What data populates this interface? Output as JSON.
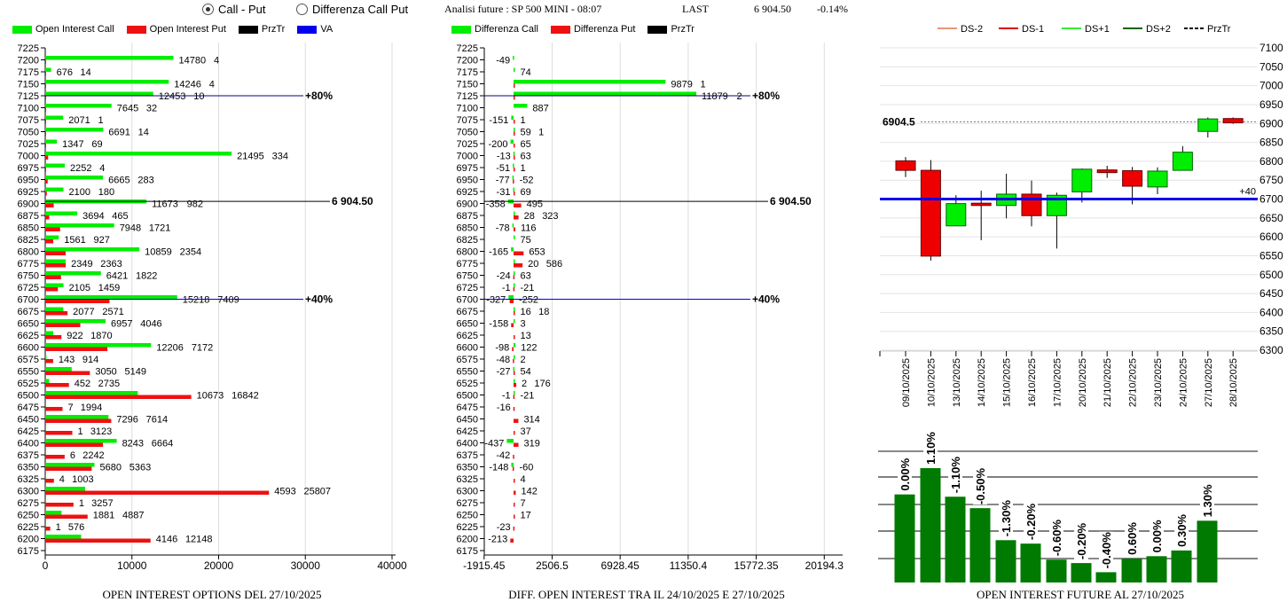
{
  "header": {
    "radio_call_put": "Call - Put",
    "radio_diff": "Differenza Call Put",
    "selected": "Call - Put",
    "analysis_title": "Analisi future : SP 500 MINI - 08:07",
    "last_label": "LAST",
    "last_value": "6 904.50",
    "change": "-0.14%"
  },
  "colors": {
    "call": "#00ee00",
    "put": "#ee1111",
    "przTr": "#000000",
    "va": "#0000ee",
    "ds_minus2": "#e8967a",
    "ds_minus1": "#dd0000",
    "ds_plus1": "#33ee33",
    "ds_plus2": "#006600",
    "oi_bar": "#007a00"
  },
  "chart_data": [
    {
      "type": "bar",
      "orientation": "horizontal",
      "title": "OPEN INTEREST OPTIONS DEL 27/10/2025",
      "legend": [
        "Open Interest Call",
        "Open Interest Put",
        "PrzTr",
        "VA"
      ],
      "legend_placement": "top",
      "xlim": [
        0,
        40000
      ],
      "xticks": [
        "0",
        "10000",
        "20000",
        "30000",
        "40000"
      ],
      "grid": true,
      "strikes": [
        7200,
        7175,
        7150,
        7125,
        7100,
        7075,
        7050,
        7025,
        7000,
        6975,
        6950,
        6925,
        6900,
        6875,
        6850,
        6825,
        6800,
        6775,
        6750,
        6725,
        6700,
        6675,
        6650,
        6625,
        6600,
        6575,
        6550,
        6525,
        6500,
        6475,
        6450,
        6425,
        6400,
        6375,
        6350,
        6325,
        6300,
        6275,
        6250,
        6225,
        6200
      ],
      "yticks": [
        7225,
        7200,
        7175,
        7150,
        7125,
        7100,
        7075,
        7050,
        7025,
        7000,
        6975,
        6950,
        6925,
        6900,
        6875,
        6850,
        6825,
        6800,
        6775,
        6750,
        6725,
        6700,
        6675,
        6650,
        6625,
        6600,
        6575,
        6550,
        6525,
        6500,
        6475,
        6450,
        6425,
        6400,
        6375,
        6350,
        6325,
        6300,
        6275,
        6250,
        6225,
        6200,
        6175
      ],
      "series": [
        {
          "name": "Open Interest Call",
          "values": [
            14780,
            676,
            14246,
            12453,
            7645,
            2071,
            6691,
            1347,
            21495,
            2252,
            6665,
            2100,
            11673,
            3694,
            7948,
            1561,
            10859,
            2349,
            6421,
            2105,
            15218,
            2077,
            6957,
            922,
            12206,
            143,
            3050,
            452,
            10673,
            7,
            7296,
            1,
            8243,
            6,
            5680,
            4,
            4593,
            1,
            1881,
            1,
            4146
          ]
        },
        {
          "name": "Open Interest Put",
          "values": [
            4,
            14,
            4,
            10,
            32,
            1,
            14,
            69,
            334,
            4,
            283,
            180,
            982,
            465,
            1721,
            927,
            2354,
            2363,
            1822,
            1459,
            7409,
            2571,
            4046,
            1870,
            7172,
            914,
            5149,
            2735,
            16842,
            1994,
            7614,
            3123,
            6664,
            2242,
            5363,
            1003,
            25807,
            3257,
            4887,
            576,
            12148
          ]
        }
      ],
      "lines": [
        {
          "strike": 7125,
          "label": "+80%",
          "color": "#000080"
        },
        {
          "strike": 6904.5,
          "label": "6 904.50",
          "color": "#000000"
        },
        {
          "strike": 6700,
          "label": "+40%",
          "color": "#0000ee"
        }
      ]
    },
    {
      "type": "bar",
      "orientation": "horizontal",
      "title": "DIFF. OPEN INTEREST TRA IL 24/10/2025 E 27/10/2025",
      "legend": [
        "Differenza Call",
        "Differenza Put",
        "PrzTr"
      ],
      "legend_placement": "top",
      "xlim": [
        -1915.45,
        20194.3
      ],
      "xticks": [
        "-1915.45",
        "2506.5",
        "6928.45",
        "11350.4",
        "15772.35",
        "20194.3"
      ],
      "grid": true,
      "series": [
        {
          "name": "Differenza Call",
          "values": [
            -49,
            74,
            9879,
            11879,
            887,
            -151,
            59,
            -200,
            -13,
            -51,
            -77,
            -31,
            -358,
            28,
            -78,
            75,
            -165,
            20,
            63,
            -1,
            -327,
            16,
            3,
            null,
            122,
            2,
            -27,
            2,
            -1,
            null,
            null,
            null,
            -437,
            null,
            -148,
            null,
            null,
            null,
            null,
            null,
            null
          ]
        },
        {
          "name": "Differenza Put",
          "values": [
            null,
            null,
            1,
            2,
            null,
            1,
            1,
            65,
            63,
            1,
            -52,
            69,
            495,
            323,
            116,
            null,
            653,
            586,
            -24,
            -21,
            -252,
            18,
            -158,
            13,
            -98,
            -48,
            54,
            176,
            -21,
            -16,
            314,
            37,
            319,
            -42,
            -60,
            4,
            142,
            7,
            17,
            -23,
            -213
          ]
        }
      ],
      "lines": [
        {
          "strike": 7125,
          "label": "+80%",
          "color": "#000080"
        },
        {
          "strike": 6904.5,
          "label": "6 904.50",
          "color": "#000000"
        },
        {
          "strike": 6700,
          "label": "+40%",
          "color": "#0000ee"
        }
      ]
    },
    {
      "type": "candlestick",
      "legend": [
        "DS-2",
        "DS-1",
        "DS+1",
        "DS+2",
        "PrzTr"
      ],
      "legend_placement": "top",
      "ylim": [
        6300,
        7100
      ],
      "yticks": [
        "7100",
        "7050",
        "7000",
        "6950",
        "6900",
        "6850",
        "6800",
        "6750",
        "6700",
        "6650",
        "6600",
        "6550",
        "6500",
        "6450",
        "6400",
        "6350",
        "6300"
      ],
      "grid": true,
      "price_label": "6904.5",
      "price_line": 6904.5,
      "level_line": {
        "value": 6700,
        "label": "+40"
      },
      "dates": [
        "09/10/2025",
        "10/10/2025",
        "13/10/2025",
        "14/10/2025",
        "15/10/2025",
        "16/10/2025",
        "17/10/2025",
        "20/10/2025",
        "21/10/2025",
        "22/10/2025",
        "23/10/2025",
        "24/10/2025",
        "27/10/2025",
        "28/10/2025"
      ],
      "ohlc": [
        [
          6801,
          6811,
          6758,
          6776
        ],
        [
          6776,
          6803,
          6537,
          6549
        ],
        [
          6629,
          6710,
          6629,
          6688
        ],
        [
          6689,
          6722,
          6591,
          6683
        ],
        [
          6683,
          6767,
          6649,
          6713
        ],
        [
          6713,
          6749,
          6628,
          6656
        ],
        [
          6656,
          6717,
          6569,
          6710
        ],
        [
          6719,
          6781,
          6691,
          6779
        ],
        [
          6777,
          6788,
          6756,
          6770
        ],
        [
          6775,
          6785,
          6686,
          6734
        ],
        [
          6732,
          6784,
          6713,
          6774
        ],
        [
          6776,
          6840,
          6776,
          6824
        ],
        [
          6879,
          6916,
          6863,
          6912
        ],
        [
          6913,
          6916,
          6899,
          6902
        ]
      ]
    },
    {
      "type": "bar",
      "title": "OPEN INTEREST FUTURE AL 27/10/2025",
      "labels": [
        "0.00%",
        "1.10%",
        "-1.10%",
        "-0.50%",
        "-1.30%",
        "-0.20%",
        "-0.60%",
        "-0.20%",
        "-0.40%",
        "0.60%",
        "0.00%",
        "0.30%",
        "1.30%"
      ],
      "relative_values": [
        0.77,
        1.0,
        0.75,
        0.65,
        0.37,
        0.34,
        0.2,
        0.17,
        0.09,
        0.21,
        0.23,
        0.28,
        0.54
      ],
      "grid": true
    }
  ]
}
